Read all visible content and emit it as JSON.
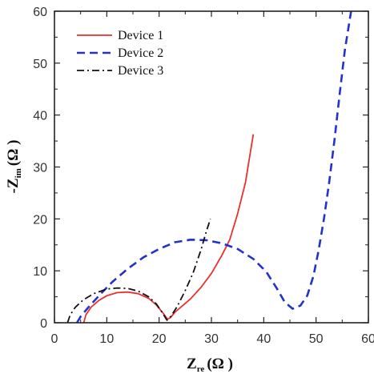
{
  "chart_data": {
    "type": "line",
    "xlabel": {
      "main": "Z",
      "sub": "re",
      "unit": "(Ω )"
    },
    "ylabel": {
      "prefix": "-",
      "main": "Z",
      "sub": "im",
      "unit": "(Ω )"
    },
    "xlim": [
      0,
      60
    ],
    "ylim": [
      0,
      60
    ],
    "x_ticks": [
      0,
      10,
      20,
      30,
      40,
      50,
      60
    ],
    "y_ticks": [
      0,
      10,
      20,
      30,
      40,
      50,
      60
    ],
    "grid": false,
    "legend_position": "top-left",
    "series": [
      {
        "name": "Device 1",
        "style": "solid",
        "color": "#e8312f",
        "points": [
          [
            5.6,
            0
          ],
          [
            6,
            1.5
          ],
          [
            7,
            3
          ],
          [
            8.5,
            4.3
          ],
          [
            10,
            5.2
          ],
          [
            12,
            5.8
          ],
          [
            14,
            5.9
          ],
          [
            16,
            5.6
          ],
          [
            18,
            4.7
          ],
          [
            19.5,
            3.4
          ],
          [
            20.8,
            1.8
          ],
          [
            21.6,
            0.7
          ],
          [
            22.2,
            1
          ],
          [
            23,
            2
          ],
          [
            24.5,
            3.3
          ],
          [
            26,
            4.6
          ],
          [
            28,
            6.8
          ],
          [
            30,
            9.5
          ],
          [
            32,
            13
          ],
          [
            33.5,
            16
          ],
          [
            35,
            21
          ],
          [
            36.5,
            27
          ],
          [
            38,
            36.3
          ]
        ]
      },
      {
        "name": "Device 2",
        "style": "dashed",
        "color": "#2233cc",
        "points": [
          [
            4.3,
            0
          ],
          [
            5,
            1.2
          ],
          [
            6.5,
            3
          ],
          [
            8.5,
            5.2
          ],
          [
            11,
            7.8
          ],
          [
            14,
            10.4
          ],
          [
            17,
            12.6
          ],
          [
            20,
            14.2
          ],
          [
            23,
            15.5
          ],
          [
            26,
            16
          ],
          [
            29,
            15.9
          ],
          [
            32,
            15.3
          ],
          [
            35,
            14.2
          ],
          [
            38,
            12.3
          ],
          [
            40.5,
            9.8
          ],
          [
            42.5,
            6.6
          ],
          [
            44,
            4
          ],
          [
            45.5,
            2.7
          ],
          [
            47,
            3.3
          ],
          [
            48.3,
            5.2
          ],
          [
            49.5,
            9
          ],
          [
            50.5,
            14
          ],
          [
            51.5,
            20
          ],
          [
            52.5,
            27
          ],
          [
            53.5,
            35
          ],
          [
            54.5,
            44
          ],
          [
            55.5,
            52.5
          ],
          [
            56.7,
            60
          ]
        ]
      },
      {
        "name": "Device 3",
        "style": "dashdot",
        "color": "#111111",
        "points": [
          [
            2.5,
            0
          ],
          [
            3,
            1.5
          ],
          [
            4,
            3
          ],
          [
            5.5,
            4.4
          ],
          [
            7.5,
            5.6
          ],
          [
            10,
            6.5
          ],
          [
            12,
            6.7
          ],
          [
            14,
            6.6
          ],
          [
            16,
            6.1
          ],
          [
            18,
            5
          ],
          [
            19.5,
            3.6
          ],
          [
            20.7,
            1.8
          ],
          [
            21.5,
            0.5
          ],
          [
            22.3,
            1.3
          ],
          [
            23.5,
            3.2
          ],
          [
            25,
            6.2
          ],
          [
            26.5,
            9.6
          ],
          [
            28,
            14
          ],
          [
            29,
            17.5
          ],
          [
            29.8,
            20
          ]
        ]
      }
    ]
  }
}
